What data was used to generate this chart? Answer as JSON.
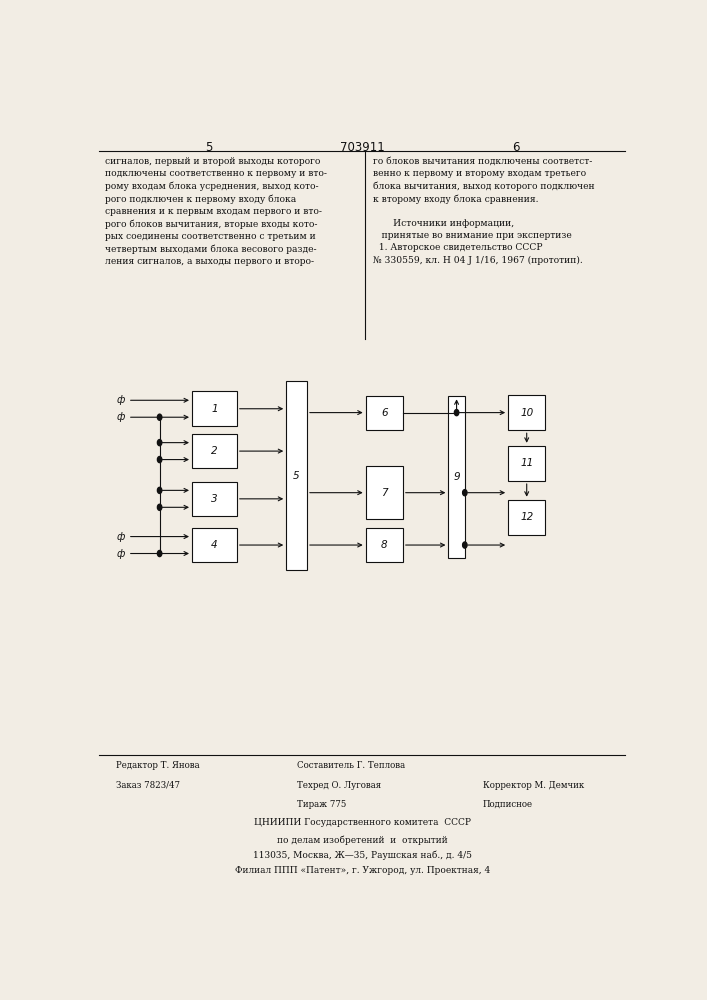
{
  "page_number_left": "5",
  "page_number_center": "703911",
  "page_number_right": "6",
  "text_left": "сигналов, первый и второй выходы которого\nподключены соответственно к первому и вто-\nрому входам блока усреднения, выход кото-\nрого подключен к первому входу блока\nсравнения и к первым входам первого и вто-\nрого блоков вычитания, вторые входы кото-\nрых соединены соответственно с третьим и\nчетвертым выходами блока весового разде-\nления сигналов, а выходы первого и второ-",
  "text_right": "го блоков вычитания подключены соответст-\nвенно к первому и второму входам третьего\nблока вычитания, выход которого подключен\nк второму входу блока сравнения.\n\n       Источники информации,\n   принятые во внимание при экспертизе\n  1. Авторское свидетельство СССР\n№ 330559, кл. Н 04 J 1/16, 1967 (прототип).",
  "footer_left_line1": "Редактор Т. Янова",
  "footer_left_line2": "Заказ 7823/47",
  "footer_center_line1": "Составитель Г. Теплова",
  "footer_center_line2": "Техред О. Луговая",
  "footer_center_line3": "Тираж 775",
  "footer_right_line1": "",
  "footer_right_line2": "Корректор М. Демчик",
  "footer_right_line3": "Подписное",
  "footer_bottom1": "ЦНИИПИ Государственного комитета  СССР",
  "footer_bottom2": "по делам изобретений  и  открытий",
  "footer_bottom3": "113035, Москва, Ж—35, Раушская наб., д. 4/5",
  "footer_bottom4": "Филиал ППП «Патент», г. Ужгород, ул. Проектная, 4",
  "bg_color": "#f2ede4",
  "line_color": "#111111",
  "box_color": "#ffffff"
}
